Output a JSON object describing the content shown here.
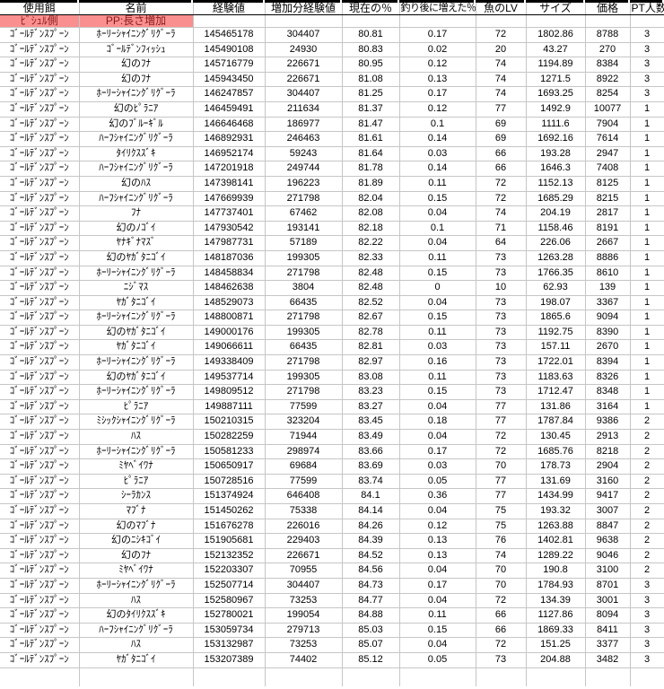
{
  "table": {
    "columns": [
      "使用餌",
      "名前",
      "経験値",
      "増加分経験値",
      "現在の％",
      "釣り後に増えた％",
      "魚のLV",
      "サイズ",
      "価格",
      "PT人数"
    ],
    "subheader": {
      "bait_side": "ﾋﾞｼｭﾙ側",
      "pp_label": "PP:長さ増加"
    },
    "rows": [
      [
        "ｺﾞｰﾙﾃﾞﾝｽﾌﾟｰﾝ",
        "ﾎｰﾘｰｼｬｲﾆﾝｸﾞﾘｸﾞｰﾗ",
        "145465178",
        "304407",
        "80.81",
        "0.17",
        "72",
        "1802.86",
        "8788",
        "3"
      ],
      [
        "ｺﾞｰﾙﾃﾞﾝｽﾌﾟｰﾝ",
        "ｺﾞｰﾙﾃﾞﾝﾌｨｯｼｭ",
        "145490108",
        "24930",
        "80.83",
        "0.02",
        "20",
        "43.27",
        "270",
        "3"
      ],
      [
        "ｺﾞｰﾙﾃﾞﾝｽﾌﾟｰﾝ",
        "幻のﾌﾅ",
        "145716779",
        "226671",
        "80.95",
        "0.12",
        "74",
        "1194.89",
        "8384",
        "3"
      ],
      [
        "ｺﾞｰﾙﾃﾞﾝｽﾌﾟｰﾝ",
        "幻のﾌﾅ",
        "145943450",
        "226671",
        "81.08",
        "0.13",
        "74",
        "1271.5",
        "8922",
        "3"
      ],
      [
        "ｺﾞｰﾙﾃﾞﾝｽﾌﾟｰﾝ",
        "ﾎｰﾘｰｼｬｲﾆﾝｸﾞﾘｸﾞｰﾗ",
        "146247857",
        "304407",
        "81.25",
        "0.17",
        "74",
        "1693.25",
        "8254",
        "3"
      ],
      [
        "ｺﾞｰﾙﾃﾞﾝｽﾌﾟｰﾝ",
        "幻のﾋﾟﾗﾆｱ",
        "146459491",
        "211634",
        "81.37",
        "0.12",
        "77",
        "1492.9",
        "10077",
        "1"
      ],
      [
        "ｺﾞｰﾙﾃﾞﾝｽﾌﾟｰﾝ",
        "幻のﾌﾞﾙｰｷﾞﾙ",
        "146646468",
        "186977",
        "81.47",
        "0.1",
        "69",
        "1111.6",
        "7904",
        "1"
      ],
      [
        "ｺﾞｰﾙﾃﾞﾝｽﾌﾟｰﾝ",
        "ﾊｰﾌｼｬｲﾆﾝｸﾞﾘｸﾞｰﾗ",
        "146892931",
        "246463",
        "81.61",
        "0.14",
        "69",
        "1692.16",
        "7614",
        "1"
      ],
      [
        "ｺﾞｰﾙﾃﾞﾝｽﾌﾟｰﾝ",
        "ﾀｲﾘｸｽｽﾞｷ",
        "146952174",
        "59243",
        "81.64",
        "0.03",
        "66",
        "193.28",
        "2947",
        "1"
      ],
      [
        "ｺﾞｰﾙﾃﾞﾝｽﾌﾟｰﾝ",
        "ﾊｰﾌｼｬｲﾆﾝｸﾞﾘｸﾞｰﾗ",
        "147201918",
        "249744",
        "81.78",
        "0.14",
        "66",
        "1646.3",
        "7408",
        "1"
      ],
      [
        "ｺﾞｰﾙﾃﾞﾝｽﾌﾟｰﾝ",
        "幻のﾊｽ",
        "147398141",
        "196223",
        "81.89",
        "0.11",
        "72",
        "1152.13",
        "8125",
        "1"
      ],
      [
        "ｺﾞｰﾙﾃﾞﾝｽﾌﾟｰﾝ",
        "ﾊｰﾌｼｬｲﾆﾝｸﾞﾘｸﾞｰﾗ",
        "147669939",
        "271798",
        "82.04",
        "0.15",
        "72",
        "1685.29",
        "8215",
        "1"
      ],
      [
        "ｺﾞｰﾙﾃﾞﾝｽﾌﾟｰﾝ",
        "ﾌﾅ",
        "147737401",
        "67462",
        "82.08",
        "0.04",
        "74",
        "204.19",
        "2817",
        "1"
      ],
      [
        "ｺﾞｰﾙﾃﾞﾝｽﾌﾟｰﾝ",
        "幻のﾉｺﾞｲ",
        "147930542",
        "193141",
        "82.18",
        "0.1",
        "71",
        "1158.46",
        "8191",
        "1"
      ],
      [
        "ｺﾞｰﾙﾃﾞﾝｽﾌﾟｰﾝ",
        "ﾔﾅｷﾞﾅﾏｽﾞ",
        "147987731",
        "57189",
        "82.22",
        "0.04",
        "64",
        "226.06",
        "2667",
        "1"
      ],
      [
        "ｺﾞｰﾙﾃﾞﾝｽﾌﾟｰﾝ",
        "幻のﾔｶﾞﾀﾆｺﾞｲ",
        "148187036",
        "199305",
        "82.33",
        "0.11",
        "73",
        "1263.28",
        "8886",
        "1"
      ],
      [
        "ｺﾞｰﾙﾃﾞﾝｽﾌﾟｰﾝ",
        "ﾎｰﾘｰｼｬｲﾆﾝｸﾞﾘｸﾞｰﾗ",
        "148458834",
        "271798",
        "82.48",
        "0.15",
        "73",
        "1766.35",
        "8610",
        "1"
      ],
      [
        "ｺﾞｰﾙﾃﾞﾝｽﾌﾟｰﾝ",
        "ﾆｼﾞﾏｽ",
        "148462638",
        "3804",
        "82.48",
        "0",
        "10",
        "62.93",
        "139",
        "1"
      ],
      [
        "ｺﾞｰﾙﾃﾞﾝｽﾌﾟｰﾝ",
        "ﾔｶﾞﾀﾆｺﾞｲ",
        "148529073",
        "66435",
        "82.52",
        "0.04",
        "73",
        "198.07",
        "3367",
        "1"
      ],
      [
        "ｺﾞｰﾙﾃﾞﾝｽﾌﾟｰﾝ",
        "ﾎｰﾘｰｼｬｲﾆﾝｸﾞﾘｸﾞｰﾗ",
        "148800871",
        "271798",
        "82.67",
        "0.15",
        "73",
        "1865.6",
        "9094",
        "1"
      ],
      [
        "ｺﾞｰﾙﾃﾞﾝｽﾌﾟｰﾝ",
        "幻のﾔｶﾞﾀﾆｺﾞｲ",
        "149000176",
        "199305",
        "82.78",
        "0.11",
        "73",
        "1192.75",
        "8390",
        "1"
      ],
      [
        "ｺﾞｰﾙﾃﾞﾝｽﾌﾟｰﾝ",
        "ﾔｶﾞﾀﾆｺﾞｲ",
        "149066611",
        "66435",
        "82.81",
        "0.03",
        "73",
        "157.11",
        "2670",
        "1"
      ],
      [
        "ｺﾞｰﾙﾃﾞﾝｽﾌﾟｰﾝ",
        "ﾎｰﾘｰｼｬｲﾆﾝｸﾞﾘｸﾞｰﾗ",
        "149338409",
        "271798",
        "82.97",
        "0.16",
        "73",
        "1722.01",
        "8394",
        "1"
      ],
      [
        "ｺﾞｰﾙﾃﾞﾝｽﾌﾟｰﾝ",
        "幻のﾔｶﾞﾀﾆｺﾞｲ",
        "149537714",
        "199305",
        "83.08",
        "0.11",
        "73",
        "1183.63",
        "8326",
        "1"
      ],
      [
        "ｺﾞｰﾙﾃﾞﾝｽﾌﾟｰﾝ",
        "ﾎｰﾘｰｼｬｲﾆﾝｸﾞﾘｸﾞｰﾗ",
        "149809512",
        "271798",
        "83.23",
        "0.15",
        "73",
        "1712.47",
        "8348",
        "1"
      ],
      [
        "ｺﾞｰﾙﾃﾞﾝｽﾌﾟｰﾝ",
        "ﾋﾟﾗﾆｱ",
        "149887111",
        "77599",
        "83.27",
        "0.04",
        "77",
        "131.86",
        "3164",
        "1"
      ],
      [
        "ｺﾞｰﾙﾃﾞﾝｽﾌﾟｰﾝ",
        "ﾐｼｯｸｼｬｲﾆﾝｸﾞﾘｸﾞｰﾗ",
        "150210315",
        "323204",
        "83.45",
        "0.18",
        "77",
        "1787.84",
        "9386",
        "2"
      ],
      [
        "ｺﾞｰﾙﾃﾞﾝｽﾌﾟｰﾝ",
        "ﾊｽ",
        "150282259",
        "71944",
        "83.49",
        "0.04",
        "72",
        "130.45",
        "2913",
        "2"
      ],
      [
        "ｺﾞｰﾙﾃﾞﾝｽﾌﾟｰﾝ",
        "ﾎｰﾘｰｼｬｲﾆﾝｸﾞﾘｸﾞｰﾗ",
        "150581233",
        "298974",
        "83.66",
        "0.17",
        "72",
        "1685.76",
        "8218",
        "2"
      ],
      [
        "ｺﾞｰﾙﾃﾞﾝｽﾌﾟｰﾝ",
        "ﾐﾔﾍﾞｲﾜﾅ",
        "150650917",
        "69684",
        "83.69",
        "0.03",
        "70",
        "178.73",
        "2904",
        "2"
      ],
      [
        "ｺﾞｰﾙﾃﾞﾝｽﾌﾟｰﾝ",
        "ﾋﾟﾗﾆｱ",
        "150728516",
        "77599",
        "83.74",
        "0.05",
        "77",
        "131.69",
        "3160",
        "2"
      ],
      [
        "ｺﾞｰﾙﾃﾞﾝｽﾌﾟｰﾝ",
        "ｼｰﾗｶﾝｽ",
        "151374924",
        "646408",
        "84.1",
        "0.36",
        "77",
        "1434.99",
        "9417",
        "2"
      ],
      [
        "ｺﾞｰﾙﾃﾞﾝｽﾌﾟｰﾝ",
        "ﾏﾌﾞﾅ",
        "151450262",
        "75338",
        "84.14",
        "0.04",
        "75",
        "193.32",
        "3007",
        "2"
      ],
      [
        "ｺﾞｰﾙﾃﾞﾝｽﾌﾟｰﾝ",
        "幻のﾏﾌﾞﾅ",
        "151676278",
        "226016",
        "84.26",
        "0.12",
        "75",
        "1263.88",
        "8847",
        "2"
      ],
      [
        "ｺﾞｰﾙﾃﾞﾝｽﾌﾟｰﾝ",
        "幻のﾆｼｷｺﾞｲ",
        "151905681",
        "229403",
        "84.39",
        "0.13",
        "76",
        "1402.81",
        "9638",
        "2"
      ],
      [
        "ｺﾞｰﾙﾃﾞﾝｽﾌﾟｰﾝ",
        "幻のﾌﾅ",
        "152132352",
        "226671",
        "84.52",
        "0.13",
        "74",
        "1289.22",
        "9046",
        "2"
      ],
      [
        "ｺﾞｰﾙﾃﾞﾝｽﾌﾟｰﾝ",
        "ﾐﾔﾍﾞｲﾜﾅ",
        "152203307",
        "70955",
        "84.56",
        "0.04",
        "70",
        "190.8",
        "3100",
        "2"
      ],
      [
        "ｺﾞｰﾙﾃﾞﾝｽﾌﾟｰﾝ",
        "ﾎｰﾘｰｼｬｲﾆﾝｸﾞﾘｸﾞｰﾗ",
        "152507714",
        "304407",
        "84.73",
        "0.17",
        "70",
        "1784.93",
        "8701",
        "3"
      ],
      [
        "ｺﾞｰﾙﾃﾞﾝｽﾌﾟｰﾝ",
        "ﾊｽ",
        "152580967",
        "73253",
        "84.77",
        "0.04",
        "72",
        "134.39",
        "3001",
        "3"
      ],
      [
        "ｺﾞｰﾙﾃﾞﾝｽﾌﾟｰﾝ",
        "幻のﾀｲﾘｸｽｽﾞｷ",
        "152780021",
        "199054",
        "84.88",
        "0.11",
        "66",
        "1127.86",
        "8094",
        "3"
      ],
      [
        "ｺﾞｰﾙﾃﾞﾝｽﾌﾟｰﾝ",
        "ﾊｰﾌｼｬｲﾆﾝｸﾞﾘｸﾞｰﾗ",
        "153059734",
        "279713",
        "85.03",
        "0.15",
        "66",
        "1869.33",
        "8411",
        "3"
      ],
      [
        "ｺﾞｰﾙﾃﾞﾝｽﾌﾟｰﾝ",
        "ﾊｽ",
        "153132987",
        "73253",
        "85.07",
        "0.04",
        "72",
        "151.25",
        "3377",
        "3"
      ],
      [
        "ｺﾞｰﾙﾃﾞﾝｽﾌﾟｰﾝ",
        "ﾔｶﾞﾀﾆｺﾞｲ",
        "153207389",
        "74402",
        "85.12",
        "0.05",
        "73",
        "204.88",
        "3482",
        "3"
      ]
    ]
  },
  "colors": {
    "subheader_bg": "#F98F8F",
    "subheader_text": "#8B1A1A",
    "gridline": "#C6C6C6",
    "header_border": "#000000",
    "text": "#000000"
  }
}
